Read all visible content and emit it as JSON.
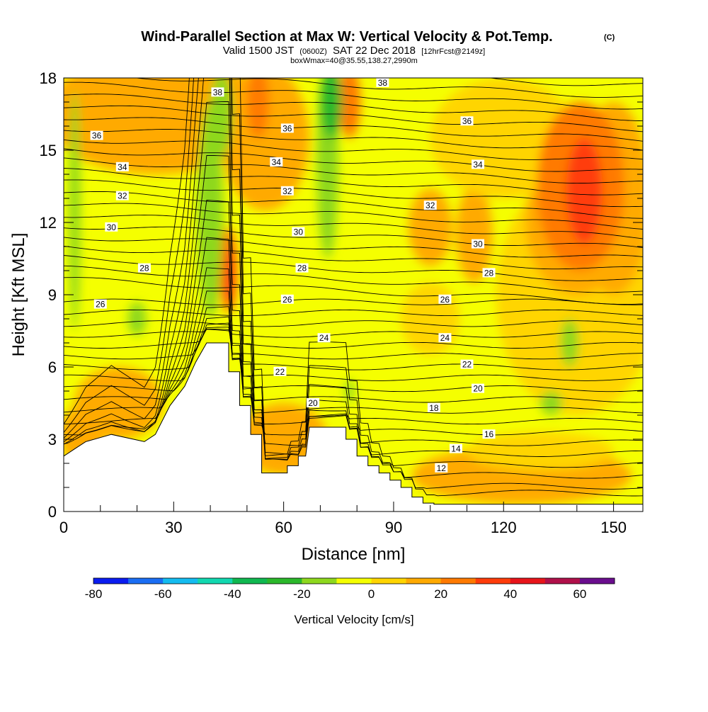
{
  "chart_data": {
    "type": "heatmap",
    "title": "Wind-Parallel Section at Max W: Vertical Velocity & Pot.Temp.",
    "title_mark": "(C)",
    "subtitle_parts": [
      "Valid 1500 JST",
      "(0600Z)",
      "SAT 22 Dec 2018",
      "[12hrFcst@2149z]"
    ],
    "subtitle2": "boxWmax=40@35.55,138.27,2990m",
    "xlabel": "Distance [nm]",
    "ylabel": "Height [Kft MSL]",
    "xlim": [
      0,
      158
    ],
    "ylim": [
      0,
      18
    ],
    "xticks": [
      0,
      30,
      60,
      90,
      120,
      150
    ],
    "yticks": [
      0,
      3,
      6,
      9,
      12,
      15,
      18
    ],
    "grid": false,
    "colorbar": {
      "label": "Vertical Velocity [cm/s]",
      "ticks": [
        -80,
        -60,
        -40,
        -20,
        0,
        20,
        40,
        60
      ],
      "levels": [
        -80,
        -70,
        -60,
        -50,
        -40,
        -30,
        -20,
        -10,
        0,
        10,
        20,
        30,
        40,
        50,
        60,
        70
      ],
      "colors": [
        "#0a1cf0",
        "#1a6ef4",
        "#14bcf0",
        "#12d8b0",
        "#10b850",
        "#2bb82b",
        "#8ed81e",
        "#f5ff00",
        "#ffd500",
        "#ffaa00",
        "#ff7a00",
        "#ff3c0a",
        "#e8141a",
        "#b0104a",
        "#6a0d8e"
      ]
    },
    "terrain": [
      [
        0,
        2.3
      ],
      [
        3,
        2.6
      ],
      [
        6,
        2.9
      ],
      [
        13,
        3.2
      ],
      [
        22,
        2.9
      ],
      [
        25,
        3.2
      ],
      [
        29,
        4.4
      ],
      [
        33,
        5.2
      ],
      [
        36,
        6.2
      ],
      [
        39,
        7.0
      ],
      [
        45,
        7.0
      ],
      [
        45,
        5.8
      ],
      [
        48,
        5.8
      ],
      [
        48,
        4.4
      ],
      [
        51,
        4.4
      ],
      [
        51,
        3.2
      ],
      [
        54,
        3.2
      ],
      [
        54,
        1.6
      ],
      [
        61,
        1.6
      ],
      [
        61,
        1.9
      ],
      [
        64,
        1.9
      ],
      [
        64,
        2.3
      ],
      [
        66,
        2.3
      ],
      [
        67,
        3.5
      ],
      [
        77,
        3.5
      ],
      [
        77,
        3.0
      ],
      [
        80,
        3.0
      ],
      [
        80,
        2.3
      ],
      [
        83,
        2.3
      ],
      [
        83,
        1.9
      ],
      [
        86,
        1.9
      ],
      [
        86,
        1.6
      ],
      [
        89,
        1.6
      ],
      [
        89,
        1.3
      ],
      [
        92,
        1.3
      ],
      [
        92,
        1.0
      ],
      [
        95,
        1.0
      ],
      [
        95,
        0.6
      ],
      [
        98,
        0.6
      ],
      [
        98,
        0.35
      ],
      [
        101,
        0.35
      ],
      [
        101,
        0.3
      ],
      [
        158,
        0.3
      ]
    ],
    "theta_levels": [
      {
        "label": "38",
        "x": 42,
        "y": 17.4
      },
      {
        "label": "38",
        "x": 87,
        "y": 17.8
      },
      {
        "label": "36",
        "x": 9,
        "y": 15.6
      },
      {
        "label": "36",
        "x": 61,
        "y": 15.9
      },
      {
        "label": "36",
        "x": 110,
        "y": 16.2
      },
      {
        "label": "34",
        "x": 16,
        "y": 14.3
      },
      {
        "label": "34",
        "x": 58,
        "y": 14.5
      },
      {
        "label": "34",
        "x": 113,
        "y": 14.4
      },
      {
        "label": "32",
        "x": 16,
        "y": 13.1
      },
      {
        "label": "32",
        "x": 61,
        "y": 13.3
      },
      {
        "label": "32",
        "x": 100,
        "y": 12.7
      },
      {
        "label": "30",
        "x": 13,
        "y": 11.8
      },
      {
        "label": "30",
        "x": 64,
        "y": 11.6
      },
      {
        "label": "30",
        "x": 113,
        "y": 11.1
      },
      {
        "label": "28",
        "x": 22,
        "y": 10.1
      },
      {
        "label": "28",
        "x": 65,
        "y": 10.1
      },
      {
        "label": "28",
        "x": 116,
        "y": 9.9
      },
      {
        "label": "26",
        "x": 10,
        "y": 8.6
      },
      {
        "label": "26",
        "x": 61,
        "y": 8.8
      },
      {
        "label": "26",
        "x": 104,
        "y": 8.8
      },
      {
        "label": "24",
        "x": 71,
        "y": 7.2
      },
      {
        "label": "24",
        "x": 104,
        "y": 7.2
      },
      {
        "label": "22",
        "x": 59,
        "y": 5.8
      },
      {
        "label": "22",
        "x": 110,
        "y": 6.1
      },
      {
        "label": "20",
        "x": 68,
        "y": 4.5
      },
      {
        "label": "20",
        "x": 113,
        "y": 5.1
      },
      {
        "label": "18",
        "x": 101,
        "y": 4.3
      },
      {
        "label": "16",
        "x": 116,
        "y": 3.2
      },
      {
        "label": "14",
        "x": 107,
        "y": 2.6
      },
      {
        "label": "12",
        "x": 103,
        "y": 1.8
      }
    ]
  }
}
